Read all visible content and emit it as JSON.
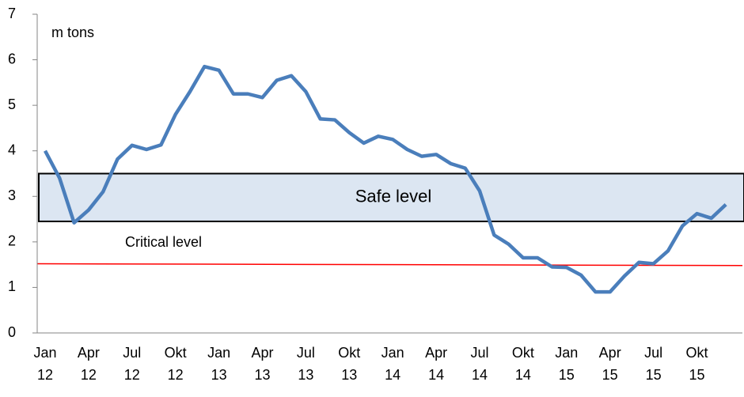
{
  "chart_data": {
    "type": "line",
    "y_axis_label": "m tons",
    "categories": [
      "Jan 12",
      null,
      null,
      "Apr 12",
      null,
      null,
      "Jul 12",
      null,
      null,
      "Okt 12",
      null,
      null,
      "Jan 13",
      null,
      null,
      "Apr 13",
      null,
      null,
      "Jul 13",
      null,
      null,
      "Okt 13",
      null,
      null,
      "Jan 14",
      null,
      null,
      "Apr 14",
      null,
      null,
      "Jul 14",
      null,
      null,
      "Okt 14",
      null,
      null,
      "Jan 15",
      null,
      null,
      "Apr 15",
      null,
      null,
      "Jul 15",
      null,
      null,
      "Okt 15",
      null,
      null
    ],
    "values": [
      4.0,
      3.4,
      2.42,
      2.7,
      3.1,
      3.82,
      4.12,
      4.03,
      4.13,
      4.8,
      5.3,
      5.85,
      5.77,
      5.25,
      5.25,
      5.17,
      5.55,
      5.65,
      5.3,
      4.7,
      4.68,
      4.4,
      4.17,
      4.32,
      4.25,
      4.03,
      3.88,
      3.92,
      3.72,
      3.62,
      3.12,
      2.15,
      1.95,
      1.65,
      1.65,
      1.45,
      1.44,
      1.27,
      0.9,
      0.9,
      1.25,
      1.55,
      1.52,
      1.8,
      2.35,
      2.62,
      2.52,
      2.82
    ],
    "color": "#4a7ebb",
    "ylim": [
      0,
      7
    ],
    "yticks": [
      0,
      1,
      2,
      3,
      4,
      5,
      6,
      7
    ],
    "safe_band": {
      "label": "Safe level",
      "range": [
        2.45,
        3.5
      ],
      "color": "#dce6f2"
    },
    "critical_line": {
      "label": "Critical level",
      "values": [
        1.52,
        1.48
      ],
      "color": "#ff0000"
    }
  }
}
